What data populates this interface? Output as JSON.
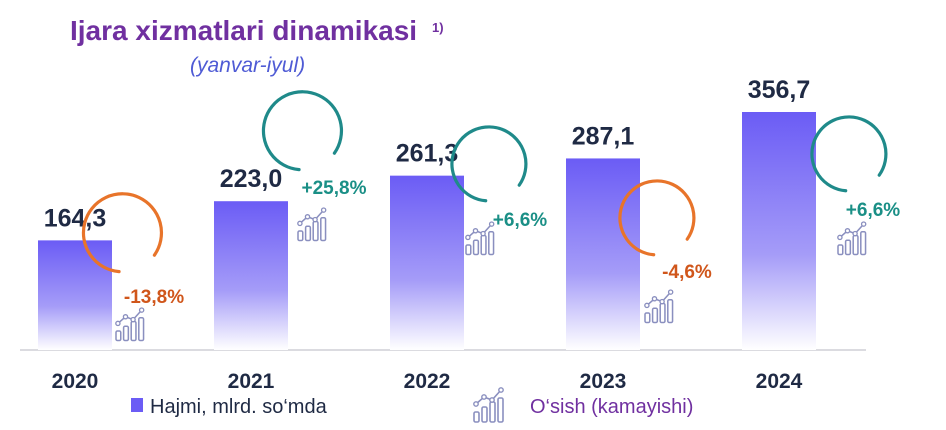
{
  "chart_data": {
    "type": "bar",
    "title": "Ijara xizmatlari dinamikasi",
    "title_note": "1)",
    "subtitle": "(yanvar-iyul)",
    "categories": [
      "2020",
      "2021",
      "2022",
      "2023",
      "2024"
    ],
    "series": [
      {
        "name": "Hajmi, mlrd. so‘mda",
        "values": [
          164.3,
          223.0,
          261.3,
          287.1,
          356.7
        ],
        "labels": [
          "164,3",
          "223,0",
          "261,3",
          "287,1",
          "356,7"
        ],
        "color": "#6b5cf5"
      }
    ],
    "growth": {
      "name": "O‘sish (kamayishi)",
      "labels": [
        "-13,8%",
        "+25,8%",
        "+6,6%",
        "-4,6%",
        "+6,6%"
      ],
      "values": [
        -13.8,
        25.8,
        6.6,
        -4.6,
        6.6
      ]
    },
    "colors": {
      "bar": "#6b5cf5",
      "negative": "#e8742a",
      "negative_text": "#d0561b",
      "positive": "#1f8a8a",
      "positive_text": "#1a8f86",
      "icon": "#8a8fbf"
    },
    "legend_position": "bottom",
    "icon": "growth-chart-icon",
    "grid": false
  }
}
